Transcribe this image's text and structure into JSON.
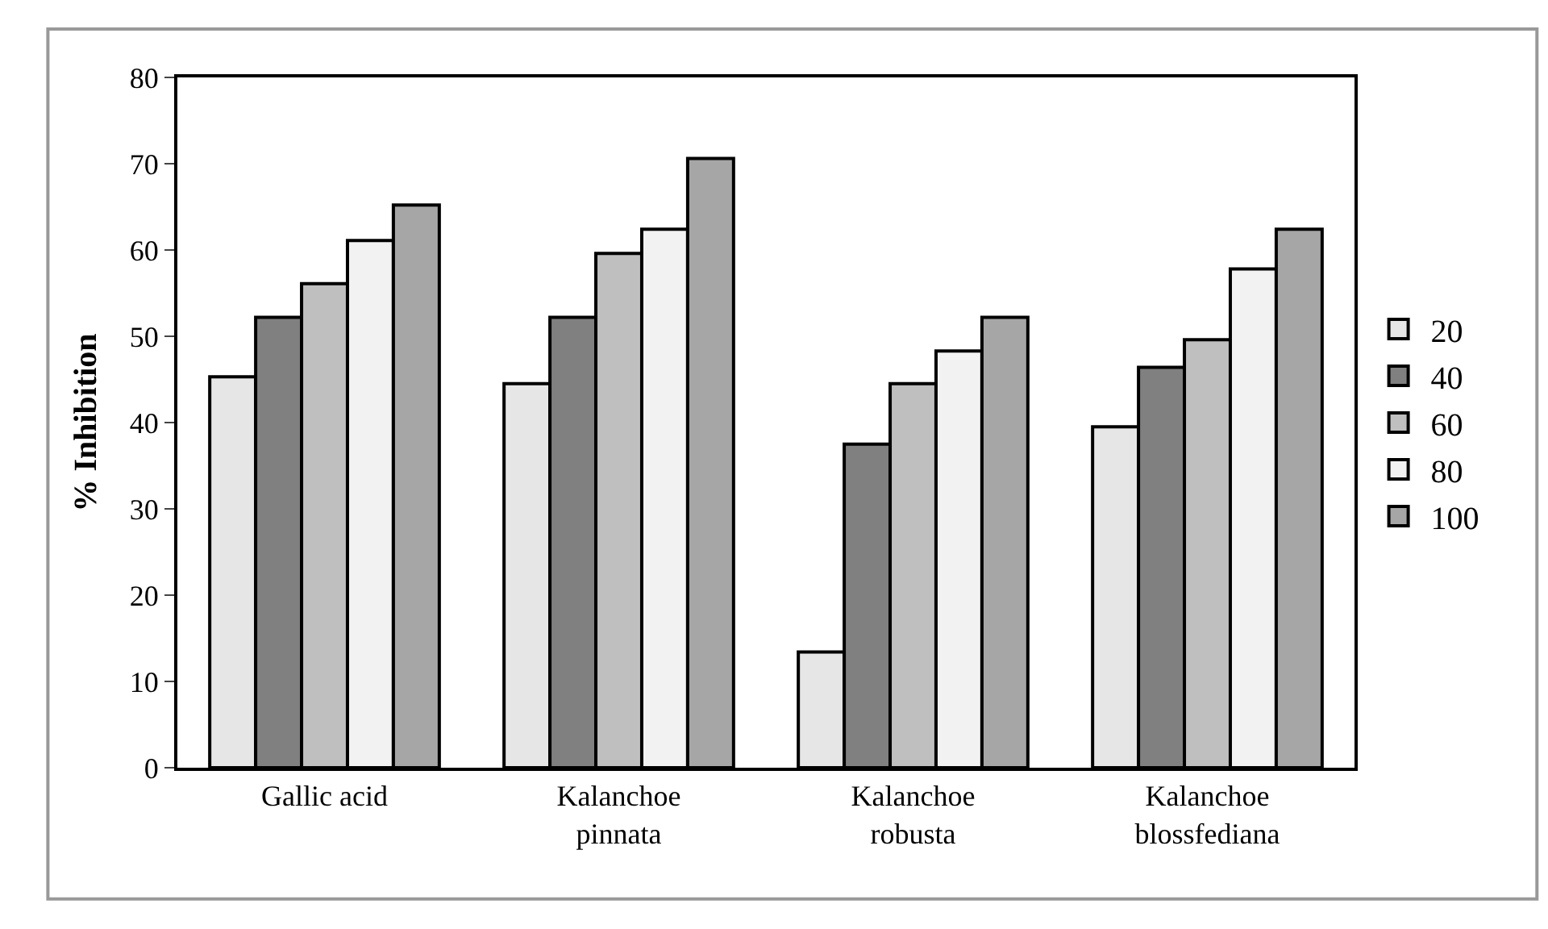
{
  "chart_data": {
    "type": "bar",
    "ylabel": "% Inhibition",
    "categories": [
      "Gallic acid",
      "Kalanchoe\npinnata",
      "Kalanchoe\nrobusta",
      "Kalanchoe\nblossfediana"
    ],
    "series": [
      {
        "name": "20",
        "color": "#e6e6e6",
        "values": [
          45.3,
          44.5,
          13.4,
          39.5
        ]
      },
      {
        "name": "40",
        "color": "#808080",
        "values": [
          52.2,
          52.2,
          37.5,
          46.4
        ]
      },
      {
        "name": "60",
        "color": "#bfbfbf",
        "values": [
          56.1,
          59.6,
          44.5,
          49.6
        ]
      },
      {
        "name": "80",
        "color": "#f2f2f2",
        "values": [
          61.1,
          62.4,
          48.3,
          57.8
        ]
      },
      {
        "name": "100",
        "color": "#a6a6a6",
        "values": [
          65.2,
          70.6,
          52.2,
          62.4
        ]
      }
    ],
    "ylim": [
      0,
      80
    ],
    "yticks": [
      0,
      10,
      20,
      30,
      40,
      50,
      60,
      70,
      80
    ],
    "legend": "right"
  }
}
